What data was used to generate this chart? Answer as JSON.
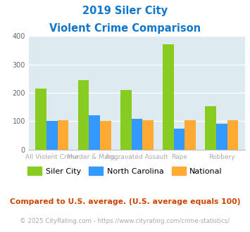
{
  "title_line1": "2019 Siler City",
  "title_line2": "Violent Crime Comparison",
  "categories": [
    "All Violent Crime",
    "Murder & Mans...",
    "Aggravated Assault",
    "Rape",
    "Robbery"
  ],
  "cat_labels_top": [
    "",
    "Murder & Mans...",
    "",
    "Rape",
    ""
  ],
  "cat_labels_bot": [
    "All Violent Crime",
    "",
    "Aggravated Assault",
    "",
    "Robbery"
  ],
  "siler_city": [
    215,
    245,
    210,
    370,
    152
  ],
  "north_carolina": [
    100,
    122,
    108,
    73,
    91
  ],
  "national": [
    103,
    102,
    103,
    103,
    103
  ],
  "color_siler": "#88cc22",
  "color_nc": "#3399ff",
  "color_national": "#ffaa33",
  "ylim": [
    0,
    400
  ],
  "yticks": [
    0,
    100,
    200,
    300,
    400
  ],
  "bg_color": "#ddeaf0",
  "title_color": "#1177cc",
  "label_color": "#aaaaaa",
  "footnote1": "Compared to U.S. average. (U.S. average equals 100)",
  "footnote2": "© 2025 CityRating.com - https://www.cityrating.com/crime-statistics/",
  "footnote1_color": "#cc4400",
  "footnote2_color": "#aaaaaa",
  "legend_labels": [
    "Siler City",
    "North Carolina",
    "National"
  ]
}
